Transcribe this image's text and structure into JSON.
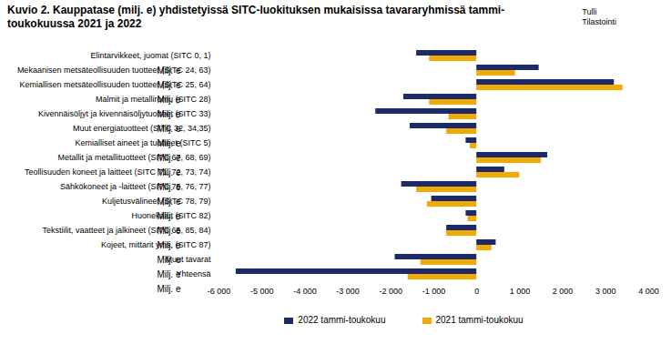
{
  "chart_data": {
    "type": "bar",
    "orientation": "horizontal",
    "title": "Kuvio  2. Kauppatase (milj. e) yhdistetyissä SITC-luokituksen mukaisissa tavararyhmissä tammi-toukokuussa 2021 ja 2022",
    "note": [
      "Tulli",
      "Tilastointi"
    ],
    "xlabel": "Milj. e",
    "categories": [
      "Elintarvikkeet, juomat (SITC 0, 1)",
      "Mekaanisen metsäteollisuuden tuotteet (SITC 24, 63)",
      "Kemiallisen metsäteollisuuden tuotteet (SITC 25, 64)",
      "Malmit ja metalliromu (SITC 28)",
      "Kivennäisöljyt ja kivennäisöljytuotteet (SITC 33)",
      "Muut energiatuotteet (SITC 32, 34,35)",
      "Kemialliset aineet ja tuotteet (SITC 5)",
      "Metallit ja metallituotteet (SITC 67, 68, 69)",
      "Teollisuuden koneet ja laitteet (SITC 71, 72, 73, 74)",
      "Sähkökoneet ja -laitteet (SITC 75, 76, 77)",
      "Kuljetusvälineet (SITC 78, 79)",
      "Huonekalut (SITC 82)",
      "Tekstiilit, vaatteet ja jalkineet (SITC 65, 85, 84)",
      "Kojeet, mittarit yms. (SITC 87)",
      "Muut tavarat",
      "Yhteensä"
    ],
    "series": [
      {
        "name": "2022 tammi-toukokuu",
        "color": "#1c2a6b",
        "values": [
          -1400,
          1450,
          3200,
          -1700,
          -2350,
          -1550,
          -250,
          1650,
          650,
          -1750,
          -1050,
          -250,
          -700,
          450,
          -1900,
          -5600
        ]
      },
      {
        "name": "2021 tammi-toukokuu",
        "color": "#f2a900",
        "values": [
          -1100,
          900,
          3400,
          -1100,
          -650,
          -700,
          -150,
          1500,
          1000,
          -1400,
          -1150,
          -200,
          -700,
          350,
          -1300,
          -1600
        ]
      }
    ],
    "xlim": [
      -6000,
      4000
    ],
    "xticks": [
      {
        "value": -6000,
        "label": "-6 000"
      },
      {
        "value": -5000,
        "label": "-5 000"
      },
      {
        "value": -4000,
        "label": "-4 000"
      },
      {
        "value": -3000,
        "label": "-3 000"
      },
      {
        "value": -2000,
        "label": "-2 000"
      },
      {
        "value": -1000,
        "label": "-1 000"
      },
      0,
      {
        "value": 1000,
        "label": "1 000"
      },
      {
        "value": 2000,
        "label": "2 000"
      },
      {
        "value": 3000,
        "label": "3 000"
      },
      {
        "value": 4000,
        "label": "4 000"
      }
    ],
    "grid": false,
    "legend": "bottom"
  }
}
